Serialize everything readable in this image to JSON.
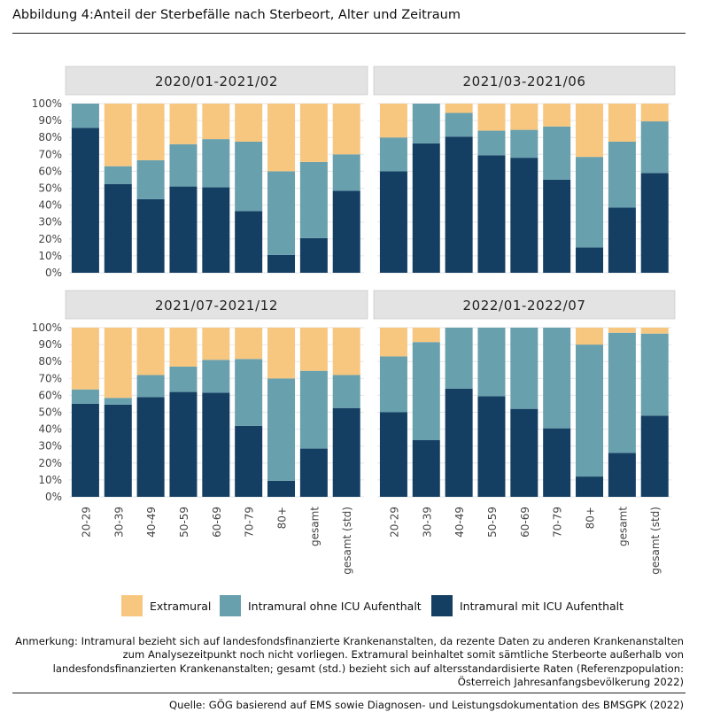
{
  "title": "Abbildung 4:Anteil der Sterbefälle nach Sterbeort, Alter und Zeitraum",
  "colors": {
    "extramural": "#F8C77F",
    "intramural_ohne_icu": "#68A0AE",
    "intramural_mit_icu": "#143F63",
    "panel_header_bg": "#E3E3E3",
    "panel_header_border": "#bfbfbf",
    "gridline": "#e6e6e6"
  },
  "legend": {
    "extramural": "Extramural",
    "intramural_ohne_icu": "Intramural ohne ICU Aufenthalt",
    "intramural_mit_icu": "Intramural mit ICU Aufenthalt"
  },
  "note": "Anmerkung: Intramural bezieht sich auf landesfondsfinanzierte Krankenanstalten, da rezente Daten zu anderen Krankenanstalten zum Analysezeitpunkt noch nicht vorliegen. Extramural beinhaltet somit sämtliche Sterbeorte außerhalb von landesfondsfinanzierten Krankenanstalten; gesamt (std.) bezieht sich auf altersstandardisierte Raten (Referenzpopulation: Österreich Jahresanfangsbevölkerung 2022)",
  "source": "Quelle: GÖG basierend auf EMS sowie Diagnosen- und Leistungsdokumentation des BMSGPK (2022)",
  "chart_data": {
    "type": "bar",
    "stacked": true,
    "normalized": true,
    "categories": [
      "20-29",
      "30-39",
      "40-49",
      "50-59",
      "60-69",
      "70-79",
      "80+",
      "gesamt",
      "gesamt (std)"
    ],
    "y_ticks": [
      "0%",
      "10%",
      "20%",
      "30%",
      "40%",
      "50%",
      "60%",
      "70%",
      "80%",
      "90%",
      "100%"
    ],
    "ylim": [
      0,
      100
    ],
    "grid": true,
    "legend_position": "bottom",
    "series_keys": [
      "intramural_mit_icu",
      "intramural_ohne_icu",
      "extramural"
    ],
    "panels": [
      {
        "label": "2020/01-2021/02",
        "series": [
          {
            "key": "intramural_mit_icu",
            "name": "Intramural mit ICU Aufenthalt",
            "values": [
              85.7,
              52.5,
              43.5,
              51,
              50.5,
              36.5,
              10.5,
              20.5,
              48.5
            ]
          },
          {
            "key": "intramural_ohne_icu",
            "name": "Intramural ohne ICU Aufenthalt",
            "values": [
              14.3,
              10.5,
              23,
              25,
              28.5,
              41,
              49.5,
              45,
              21.5
            ]
          },
          {
            "key": "extramural",
            "name": "Extramural",
            "values": [
              0,
              37,
              33.5,
              24,
              21,
              22.5,
              40,
              34.5,
              30
            ]
          }
        ]
      },
      {
        "label": "2021/03-2021/06",
        "series": [
          {
            "key": "intramural_mit_icu",
            "name": "Intramural mit ICU Aufenthalt",
            "values": [
              60,
              76.5,
              80.5,
              69.5,
              68,
              55,
              15,
              38.5,
              59
            ]
          },
          {
            "key": "intramural_ohne_icu",
            "name": "Intramural ohne ICU Aufenthalt",
            "values": [
              20,
              23.5,
              14,
              14.5,
              16.5,
              31.5,
              53.5,
              39,
              30.5
            ]
          },
          {
            "key": "extramural",
            "name": "Extramural",
            "values": [
              20,
              0,
              5.5,
              16,
              15.5,
              13.5,
              31.5,
              22.5,
              10.5
            ]
          }
        ]
      },
      {
        "label": "2021/07-2021/12",
        "series": [
          {
            "key": "intramural_mit_icu",
            "name": "Intramural mit ICU Aufenthalt",
            "values": [
              55,
              54.5,
              59,
              62,
              61.5,
              42,
              9.5,
              28.5,
              52.5
            ]
          },
          {
            "key": "intramural_ohne_icu",
            "name": "Intramural ohne ICU Aufenthalt",
            "values": [
              8.5,
              4,
              13,
              15,
              19.5,
              39.5,
              60.5,
              46,
              19.5
            ]
          },
          {
            "key": "extramural",
            "name": "Extramural",
            "values": [
              36.5,
              41.5,
              28,
              23,
              19,
              18.5,
              30,
              25.5,
              28
            ]
          }
        ]
      },
      {
        "label": "2022/01-2022/07",
        "series": [
          {
            "key": "intramural_mit_icu",
            "name": "Intramural mit ICU Aufenthalt",
            "values": [
              50,
              33.5,
              64,
              59.5,
              52,
              40.5,
              12,
              26,
              48
            ]
          },
          {
            "key": "intramural_ohne_icu",
            "name": "Intramural ohne ICU Aufenthalt",
            "values": [
              33,
              58,
              36,
              40.5,
              48,
              59.5,
              78,
              71,
              48.5
            ]
          },
          {
            "key": "extramural",
            "name": "Extramural",
            "values": [
              17,
              8.5,
              0,
              0,
              0,
              0,
              10,
              3,
              3.5
            ]
          }
        ]
      }
    ]
  }
}
